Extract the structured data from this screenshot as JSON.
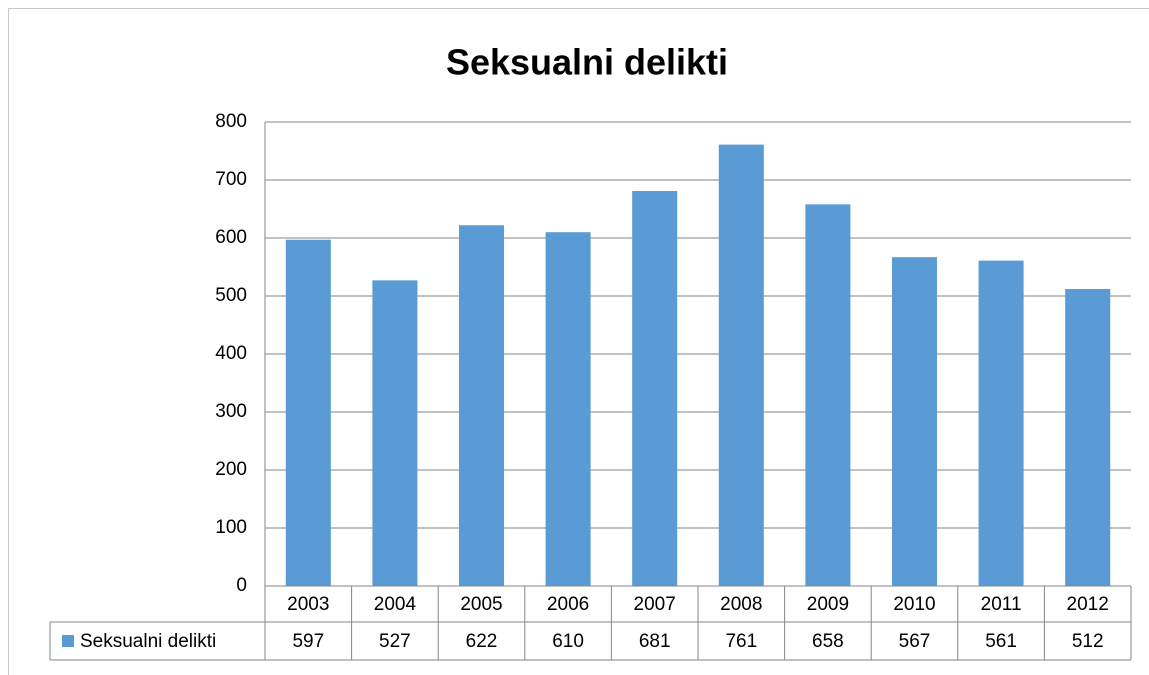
{
  "chart_data": {
    "type": "bar",
    "title": "Seksualni delikti",
    "categories": [
      "2003",
      "2004",
      "2005",
      "2006",
      "2007",
      "2008",
      "2009",
      "2010",
      "2011",
      "2012"
    ],
    "series": [
      {
        "name": "Seksualni delikti",
        "color": "#5b9bd5",
        "values": [
          597,
          527,
          622,
          610,
          681,
          761,
          658,
          567,
          561,
          512
        ]
      }
    ],
    "ylim": [
      0,
      800
    ],
    "yticks": [
      0,
      100,
      200,
      300,
      400,
      500,
      600,
      700,
      800
    ],
    "grid": true,
    "data_table": true
  }
}
